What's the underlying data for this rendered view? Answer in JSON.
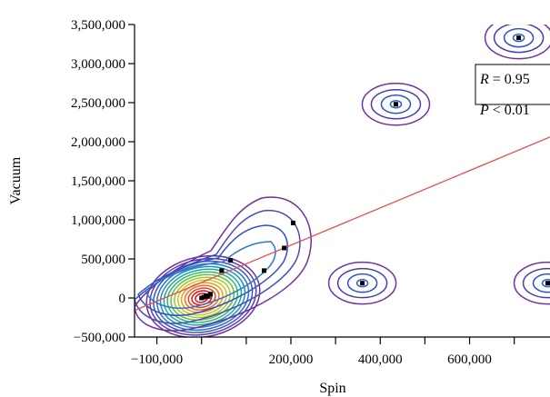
{
  "chart_data": {
    "type": "scatter",
    "title": "",
    "xlabel": "Spin",
    "ylabel": "Vacuum",
    "xlim": [
      -150000,
      780000
    ],
    "ylim": [
      -500000,
      3500000
    ],
    "x_ticks": [
      -100000,
      200000,
      400000,
      600000
    ],
    "x_tick_labels": [
      "−100,000",
      "200,000",
      "400,000",
      "600,000"
    ],
    "x_minor_ticks": [
      0,
      100000,
      300000,
      500000,
      700000
    ],
    "y_ticks": [
      -500000,
      0,
      500000,
      1000000,
      1500000,
      2000000,
      2500000,
      3000000,
      3500000
    ],
    "y_tick_labels": [
      "−500,000",
      "0",
      "500,000",
      "1,000,000",
      "1,500,000",
      "2,000,000",
      "2,500,000",
      "3,000,000",
      "3,500,000"
    ],
    "points": [
      {
        "x": 0,
        "y": 0
      },
      {
        "x": 5000,
        "y": 10000
      },
      {
        "x": 10000,
        "y": 30000
      },
      {
        "x": 15000,
        "y": 20000
      },
      {
        "x": 20000,
        "y": 50000
      },
      {
        "x": 45000,
        "y": 350000
      },
      {
        "x": 65000,
        "y": 480000
      },
      {
        "x": 140000,
        "y": 350000
      },
      {
        "x": 185000,
        "y": 640000
      },
      {
        "x": 205000,
        "y": 960000
      },
      {
        "x": 360000,
        "y": 190000
      },
      {
        "x": 435000,
        "y": 2480000
      },
      {
        "x": 710000,
        "y": 3330000
      },
      {
        "x": 775000,
        "y": 190000
      }
    ],
    "trend_line": {
      "x": [
        -150000,
        780000
      ],
      "y": [
        -160000,
        2060000
      ]
    },
    "annotations": {
      "r_label": "R",
      "r_value": " = 0.95",
      "p_label": "P",
      "p_value": " < 0.01"
    },
    "colors": {
      "trend": "#e05050",
      "points": "#000000",
      "contour_outer": "#7030a0",
      "contour_inner": "#e81010"
    }
  }
}
